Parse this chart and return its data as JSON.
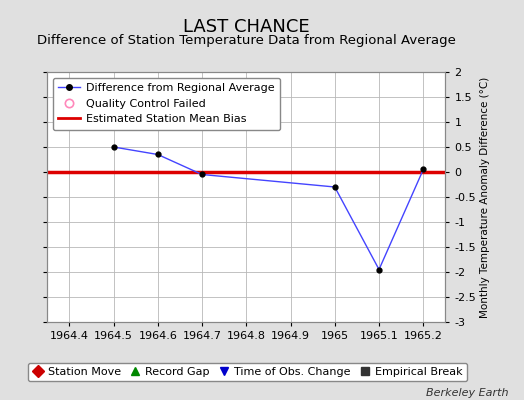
{
  "title": "LAST CHANCE",
  "subtitle": "Difference of Station Temperature Data from Regional Average",
  "ylabel_right": "Monthly Temperature Anomaly Difference (°C)",
  "xlabel_ticks": [
    1964.4,
    1964.5,
    1964.6,
    1964.7,
    1964.8,
    1964.9,
    1965.0,
    1965.1,
    1965.2
  ],
  "xlabel_labels": [
    "1964.4",
    "1964.5",
    "1964.6",
    "1964.7",
    "1964.8",
    "1964.9",
    "1965",
    "1965.1",
    "1965.2"
  ],
  "ylim": [
    -3,
    2
  ],
  "yticks": [
    -3,
    -2.5,
    -2,
    -1.5,
    -1,
    -0.5,
    0,
    0.5,
    1,
    1.5,
    2
  ],
  "xlim": [
    1964.35,
    1965.25
  ],
  "line_x": [
    1964.5,
    1964.6,
    1964.7,
    1965.0,
    1965.1,
    1965.2
  ],
  "line_y": [
    0.5,
    0.35,
    -0.05,
    -0.3,
    -1.95,
    0.05
  ],
  "bias_y": 0.0,
  "bias_color": "#dd0000",
  "line_color": "#4444ff",
  "marker_color": "#000000",
  "bg_color": "#e0e0e0",
  "plot_bg_color": "#ffffff",
  "grid_color": "#b8b8b8",
  "legend_items": [
    {
      "label": "Difference from Regional Average",
      "type": "line",
      "color": "#4444ff",
      "marker": "o"
    },
    {
      "label": "Quality Control Failed",
      "type": "scatter",
      "color": "#ff88bb"
    },
    {
      "label": "Estimated Station Mean Bias",
      "type": "line",
      "color": "#dd0000"
    }
  ],
  "bottom_legend_items": [
    {
      "label": "Station Move",
      "color": "#cc0000",
      "marker": "D"
    },
    {
      "label": "Record Gap",
      "color": "#008800",
      "marker": "^"
    },
    {
      "label": "Time of Obs. Change",
      "color": "#0000cc",
      "marker": "v"
    },
    {
      "label": "Empirical Break",
      "color": "#333333",
      "marker": "s"
    }
  ],
  "watermark": "Berkeley Earth",
  "title_fontsize": 13,
  "subtitle_fontsize": 9.5,
  "tick_fontsize": 8,
  "legend_fontsize": 8,
  "ylabel_fontsize": 7.5
}
